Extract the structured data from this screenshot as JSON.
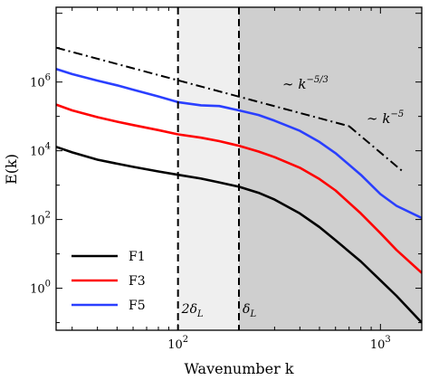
{
  "chart_data": {
    "type": "line",
    "xlabel": "Wavenumber k",
    "ylabel": "E(k)",
    "xscale": "log",
    "yscale": "log",
    "xlim": [
      25,
      1600
    ],
    "ylim": [
      0.06,
      150000000
    ],
    "x_ticks": [
      {
        "value": 100,
        "label": "10",
        "exp": "2"
      },
      {
        "value": 1000,
        "label": "10",
        "exp": "3"
      }
    ],
    "y_ticks": [
      {
        "value": 1,
        "label": "10",
        "exp": "0"
      },
      {
        "value": 100,
        "label": "10",
        "exp": "2"
      },
      {
        "value": 10000,
        "label": "10",
        "exp": "4"
      },
      {
        "value": 1000000,
        "label": "10",
        "exp": "6"
      }
    ],
    "grid": false,
    "legend_position": "bottom-left",
    "series": [
      {
        "name": "F1",
        "color": "#000000",
        "x": [
          25,
          30,
          40,
          50,
          60,
          80,
          100,
          130,
          160,
          200,
          250,
          300,
          400,
          500,
          600,
          800,
          1000,
          1200,
          1600
        ],
        "y": [
          13000,
          9000,
          5500,
          4200,
          3400,
          2500,
          2000,
          1550,
          1200,
          900,
          600,
          380,
          150,
          60,
          25,
          6,
          1.7,
          0.6,
          0.1
        ]
      },
      {
        "name": "F3",
        "color": "#ff0000",
        "x": [
          25,
          30,
          40,
          50,
          60,
          80,
          100,
          130,
          160,
          200,
          250,
          300,
          400,
          500,
          600,
          800,
          1000,
          1200,
          1600
        ],
        "y": [
          220000,
          150000,
          95000,
          70000,
          56000,
          40000,
          30000,
          24000,
          19000,
          14000,
          9500,
          6500,
          3200,
          1500,
          700,
          150,
          40,
          13,
          2.8
        ]
      },
      {
        "name": "F5",
        "color": "#2a3fff",
        "x": [
          25,
          30,
          40,
          50,
          60,
          80,
          100,
          130,
          160,
          200,
          250,
          300,
          400,
          500,
          600,
          800,
          1000,
          1200,
          1600
        ],
        "y": [
          2400000,
          1700000,
          1100000,
          800000,
          600000,
          380000,
          260000,
          210000,
          200000,
          150000,
          110000,
          75000,
          38000,
          18000,
          8500,
          2000,
          550,
          250,
          110
        ]
      }
    ],
    "reference_lines": [
      {
        "label_prefix": "∼ k",
        "label_exp": "−5/3",
        "x": [
          25,
          700
        ],
        "y": [
          10000000,
          52000
        ]
      },
      {
        "label_prefix": "∼ k",
        "label_exp": "−5",
        "x": [
          700,
          1300
        ],
        "y": [
          52000,
          2400
        ]
      }
    ],
    "vertical_lines": [
      {
        "x": 100,
        "label": "2δ",
        "sub": "L"
      },
      {
        "x": 200,
        "label": "δ",
        "sub": "L"
      }
    ],
    "shaded_regions": [
      {
        "x": [
          100,
          200
        ],
        "color": "#efefef"
      },
      {
        "x": [
          200,
          1600
        ],
        "color": "#cfcfcf"
      }
    ]
  }
}
